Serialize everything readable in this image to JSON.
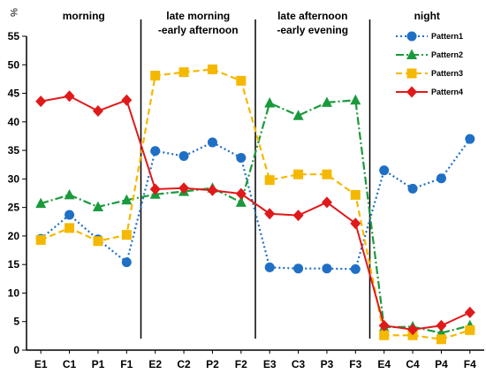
{
  "chart_data": {
    "type": "line",
    "ylabel": "%",
    "ylim": [
      0,
      55
    ],
    "yticks": [
      0,
      5,
      10,
      15,
      20,
      25,
      30,
      35,
      40,
      45,
      50,
      55
    ],
    "categories": [
      "E1",
      "C1",
      "P1",
      "F1",
      "E2",
      "C2",
      "P2",
      "F2",
      "E3",
      "C3",
      "P3",
      "F3",
      "E4",
      "C4",
      "P4",
      "F4"
    ],
    "sections": [
      {
        "label_lines": [
          "morning"
        ]
      },
      {
        "label_lines": [
          "late morning",
          "-early afternoon"
        ]
      },
      {
        "label_lines": [
          "late afternoon",
          "-early evening"
        ]
      },
      {
        "label_lines": [
          "night"
        ]
      }
    ],
    "legend_position": "top-right",
    "series": [
      {
        "name": "Pattern1",
        "color": "#1f6fc5",
        "line_style": "dotted",
        "marker": "circle",
        "values": [
          19.5,
          23.7,
          19.4,
          15.4,
          34.9,
          34.0,
          36.4,
          33.7,
          14.5,
          14.3,
          14.3,
          14.2,
          31.5,
          28.3,
          30.1,
          37.0
        ]
      },
      {
        "name": "Pattern2",
        "color": "#1a9a3c",
        "line_style": "dashdot",
        "marker": "triangle",
        "values": [
          25.7,
          27.2,
          25.1,
          26.3,
          27.3,
          27.8,
          28.4,
          25.9,
          43.3,
          41.1,
          43.4,
          43.8,
          4.0,
          4.1,
          3.0,
          4.3
        ]
      },
      {
        "name": "Pattern3",
        "color": "#f5b800",
        "line_style": "dashed",
        "marker": "square",
        "values": [
          19.3,
          21.4,
          19.1,
          20.2,
          48.1,
          48.7,
          49.2,
          47.2,
          29.8,
          30.8,
          30.8,
          27.2,
          2.6,
          2.6,
          1.9,
          3.5
        ]
      },
      {
        "name": "Pattern4",
        "color": "#e0191b",
        "line_style": "solid",
        "marker": "diamond",
        "values": [
          43.6,
          44.5,
          41.9,
          43.8,
          28.2,
          28.4,
          28.0,
          27.4,
          23.9,
          23.6,
          25.9,
          22.2,
          4.3,
          3.6,
          4.3,
          6.6
        ]
      }
    ]
  }
}
